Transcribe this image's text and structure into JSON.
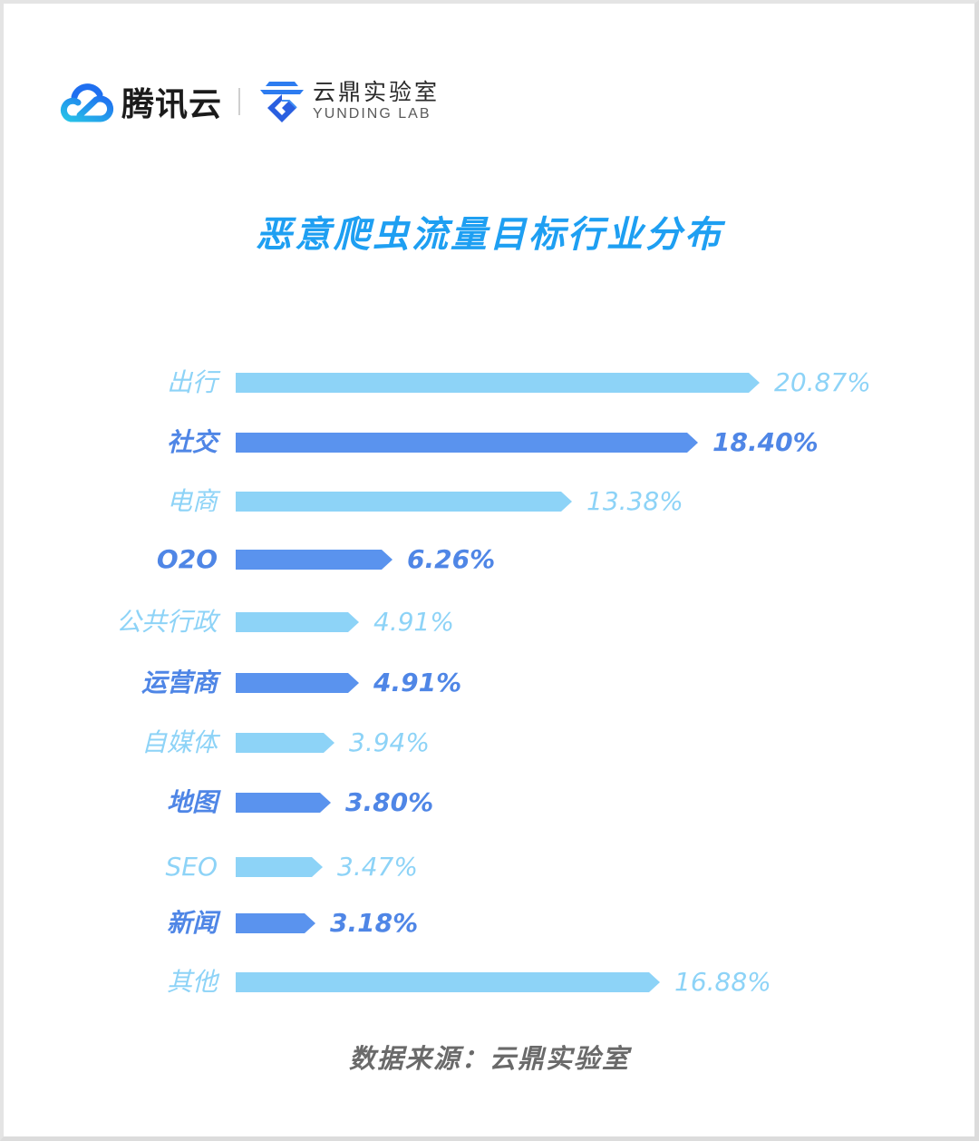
{
  "header": {
    "brand_name": "腾讯云",
    "lab_name_cn": "云鼎实验室",
    "lab_name_en": "YUNDING LAB",
    "icons": [
      "tencent-cloud-logo-icon",
      "yunding-lab-logo-icon"
    ]
  },
  "colors": {
    "title": "#1e9ff2",
    "bar_light": "#8dd3f7",
    "bar_dark": "#5a93ee",
    "label_dark": "#4f86e6",
    "source_text": "#6a6a6a"
  },
  "chart_data": {
    "type": "bar",
    "orientation": "horizontal",
    "title": "恶意爬虫流量目标行业分布",
    "xlabel": "",
    "ylabel": "",
    "unit": "%",
    "grid": false,
    "legend": null,
    "categories": [
      "出行",
      "社交",
      "电商",
      "O2O",
      "公共行政",
      "运营商",
      "自媒体",
      "地图",
      "SEO",
      "新闻",
      "其他"
    ],
    "values": [
      20.87,
      18.4,
      13.38,
      6.26,
      4.91,
      4.91,
      3.94,
      3.8,
      3.47,
      3.18,
      16.88
    ],
    "value_labels": [
      "20.87%",
      "18.40%",
      "13.38%",
      "6.26%",
      "4.91%",
      "4.91%",
      "3.94%",
      "3.80%",
      "3.47%",
      "3.18%",
      "16.88%"
    ],
    "bar_styles": [
      "light",
      "dark",
      "light",
      "dark",
      "light",
      "dark",
      "light",
      "dark",
      "light",
      "dark",
      "light"
    ],
    "source": "数据来源：云鼎实验室"
  }
}
